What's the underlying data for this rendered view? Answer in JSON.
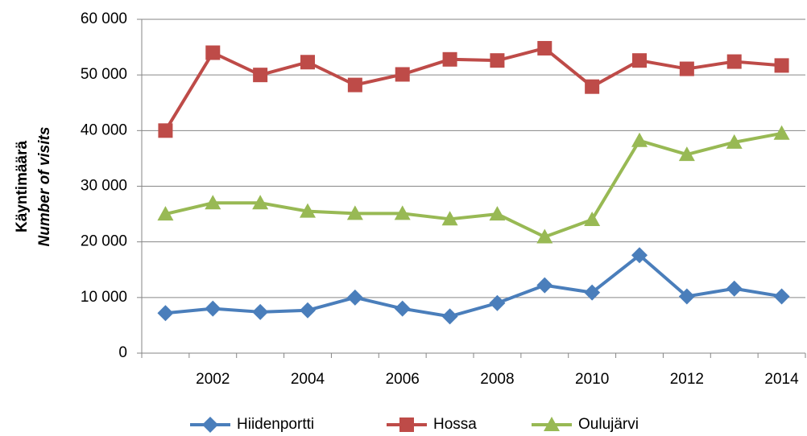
{
  "chart_data": {
    "type": "line",
    "y_label": [
      "Käyntimäärä",
      "Number of visits"
    ],
    "categories": [
      null,
      "2002",
      null,
      "2004",
      null,
      "2006",
      null,
      "2008",
      null,
      "2010",
      null,
      "2012",
      null,
      "2014"
    ],
    "series": [
      {
        "name": "Hiidenportti",
        "color": "#4a7ebb",
        "marker": "diamond",
        "values": [
          7200,
          8000,
          7400,
          7700,
          10000,
          8000,
          6600,
          9000,
          12200,
          10900,
          17600,
          10200,
          11600,
          10200
        ]
      },
      {
        "name": "Hossa",
        "color": "#be4b48",
        "marker": "square",
        "values": [
          40000,
          54000,
          50000,
          52300,
          48200,
          50100,
          52800,
          52600,
          54800,
          47900,
          52600,
          51100,
          52400,
          51700
        ]
      },
      {
        "name": "Oulujärvi",
        "color": "#98b954",
        "marker": "triangle",
        "values": [
          25000,
          27000,
          27000,
          25500,
          25100,
          25100,
          24100,
          25000,
          20900,
          24000,
          38200,
          35700,
          37900,
          39500
        ]
      }
    ],
    "ylim": [
      0,
      60000
    ],
    "yticks": [
      0,
      {
        "value": 10000,
        "label": "10 000"
      },
      {
        "value": 20000,
        "label": "20 000"
      },
      {
        "value": 30000,
        "label": "30 000"
      },
      {
        "value": 40000,
        "label": "40 000"
      },
      {
        "value": 50000,
        "label": "50 000"
      },
      {
        "value": 60000,
        "label": "60 000"
      }
    ],
    "grid": true,
    "legend": "bottom"
  }
}
